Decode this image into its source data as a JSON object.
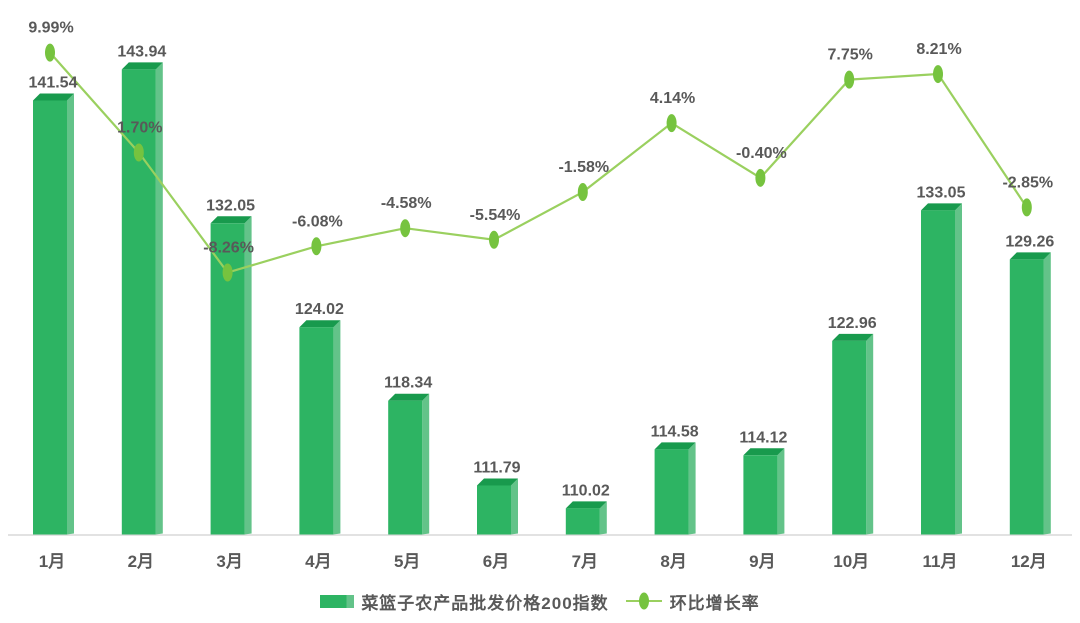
{
  "chart_data": {
    "type": "combo",
    "title": "",
    "xlabel": "",
    "ylabel": "",
    "categories": [
      "1月",
      "2月",
      "3月",
      "4月",
      "5月",
      "6月",
      "7月",
      "8月",
      "9月",
      "10月",
      "11月",
      "12月"
    ],
    "series": [
      {
        "name": "菜篮子农产品批发价格200指数",
        "type": "bar",
        "axis": "left",
        "values": [
          141.54,
          143.94,
          132.05,
          124.02,
          118.34,
          111.79,
          110.02,
          114.58,
          114.12,
          122.96,
          133.05,
          129.26
        ],
        "labels": [
          "141.54",
          "143.94",
          "132.05",
          "124.02",
          "118.34",
          "111.79",
          "110.02",
          "114.58",
          "114.12",
          "122.96",
          "133.05",
          "129.26"
        ]
      },
      {
        "name": "环比增长率",
        "type": "line",
        "axis": "right",
        "values": [
          9.99,
          1.7,
          -8.26,
          -6.08,
          -4.58,
          -5.54,
          -1.58,
          4.14,
          -0.4,
          7.75,
          8.21,
          -2.85
        ],
        "labels": [
          "9.99%",
          "1.70%",
          "-8.26%",
          "-6.08%",
          "-4.58%",
          "-5.54%",
          "-1.58%",
          "4.14%",
          "-0.40%",
          "7.75%",
          "8.21%",
          "-2.85%"
        ]
      }
    ],
    "ylim_left_implied": [
      108,
      146
    ],
    "grid": false,
    "legend_position": "bottom",
    "data_labels_visible": true,
    "axes_tick_labels_visible": false
  },
  "colors": {
    "background": "#ffffff",
    "bar_front": "#2db463",
    "bar_top": "#189a4d",
    "bar_side": "#63c389",
    "line": "#9ad05f",
    "marker": "#76c33f",
    "label": "#595959",
    "axis_line": "#d9d9d9"
  }
}
